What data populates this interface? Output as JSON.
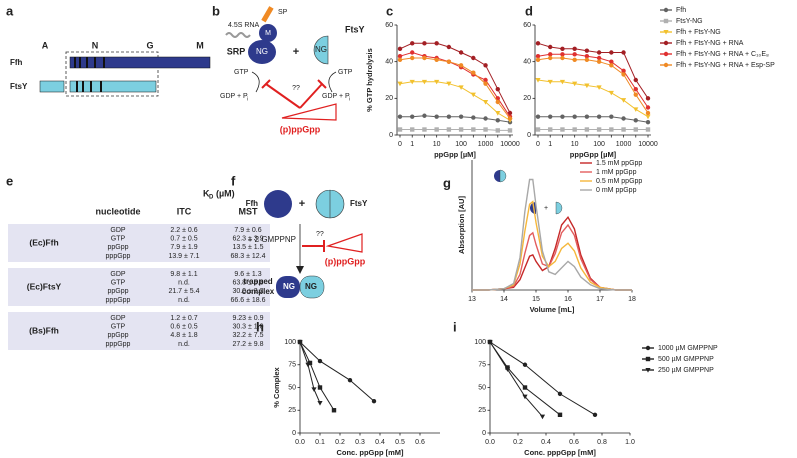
{
  "diagram_a": {
    "label": "a",
    "domains": [
      "A",
      "N",
      "G",
      "M"
    ],
    "proteins": [
      "Ffh",
      "FtsY"
    ]
  },
  "diagram_b": {
    "label": "b",
    "rna": "4.5S RNA",
    "sp": "SP",
    "m_domain": "M",
    "ffh_domain": "NG",
    "srp": "SRP",
    "plus": "+",
    "ftsy": "FtsY",
    "ftsy_domain": "NG",
    "gtp": [
      "GTP",
      "GTP"
    ],
    "gdp": [
      "GDP + P",
      "GDP + P"
    ],
    "pi": [
      "i",
      "i"
    ],
    "question": "??",
    "inhibitor": "(p)ppGpp"
  },
  "table_e": {
    "label": "e",
    "kd_symbol": "K",
    "kd_sub": "D",
    "kd_unit": "(µM)",
    "columns": [
      "nucleotide",
      "ITC",
      "MST"
    ],
    "groups": [
      {
        "name": "(Ec)Ffh",
        "rows": [
          [
            "GDP",
            "2.2 ± 0.6",
            "7.9 ± 0.6"
          ],
          [
            "GTP",
            "0.7 ± 0.5",
            "62.3 ± 3.9"
          ],
          [
            "ppGpp",
            "7.9 ± 1.9",
            "13.5 ± 1.5"
          ],
          [
            "pppGpp",
            "13.9 ± 7.1",
            "68.3 ± 12.4"
          ]
        ]
      },
      {
        "name": "(Ec)FtsY",
        "rows": [
          [
            "GDP",
            "9.8 ± 1.1",
            "9.6 ± 1.3"
          ],
          [
            "GTP",
            "n.d.",
            "63.8 ± 6.8"
          ],
          [
            "ppGpp",
            "21.7 ± 5.4",
            "30.0 ± 2.2"
          ],
          [
            "pppGpp",
            "n.d.",
            "66.6 ± 18.6"
          ]
        ]
      },
      {
        "name": "(Bs)Ffh",
        "rows": [
          [
            "GDP",
            "1.2 ± 0.7",
            "9.23 ± 0.9"
          ],
          [
            "GTP",
            "0.6 ± 0.5",
            "30.3 ± 1.0"
          ],
          [
            "ppGpp",
            "4.8 ± 1.8",
            "32.2 ± 7.5"
          ],
          [
            "pppGpp",
            "n.d.",
            "27.2 ± 9.8"
          ]
        ]
      }
    ]
  },
  "diagram_f": {
    "label": "f",
    "ffh": "Ffh",
    "plus": "+",
    "ftsy": "FtsY",
    "nucleotide": "+ 2 GMPPNP",
    "question": "??",
    "inhibitor": "(p)ppGpp",
    "product": [
      "trapped",
      "complex"
    ],
    "domains": [
      "NG",
      "NG"
    ]
  },
  "chart_data": [
    {
      "type": "line",
      "label": "c",
      "y_label": "% GTP hydrolysis",
      "x_label": "ppGpp [µM]",
      "categories": [
        "0",
        "1",
        null,
        "10",
        null,
        "100",
        null,
        "1000",
        null,
        "10000"
      ],
      "ylim": [
        0,
        60
      ],
      "yticks": [
        0,
        20,
        40,
        60
      ],
      "series": [
        {
          "color": "#636363",
          "marker": "circle",
          "values": [
            10,
            10,
            10.5,
            10,
            10,
            10,
            9.5,
            9,
            8,
            7
          ]
        },
        {
          "color": "#b0b0b0",
          "marker": "square",
          "values": [
            3,
            3,
            3,
            3,
            3,
            3,
            3,
            3,
            2.5,
            2.5
          ]
        },
        {
          "color": "#f2c12e",
          "marker": "triangle",
          "values": [
            28,
            29,
            29,
            29,
            28,
            26,
            22,
            18,
            12,
            8
          ]
        },
        {
          "color": "#a31f24",
          "marker": "circle",
          "values": [
            47,
            50,
            50,
            50,
            48,
            45,
            42,
            38,
            25,
            12
          ]
        },
        {
          "color": "#e03030",
          "marker": "circle",
          "values": [
            43,
            45,
            43,
            42,
            40,
            37,
            33,
            30,
            20,
            10
          ]
        },
        {
          "color": "#f08a24",
          "marker": "circle",
          "values": [
            41,
            42,
            42,
            41,
            40,
            38,
            34,
            28,
            18,
            9
          ]
        }
      ]
    },
    {
      "type": "line",
      "label": "d",
      "x_label": "pppGpp [µM]",
      "legend": "right",
      "categories": [
        "0",
        "1",
        null,
        "10",
        null,
        "100",
        null,
        "1000",
        null,
        "10000"
      ],
      "ylim": [
        0,
        60
      ],
      "yticks": [
        0,
        20,
        40,
        60
      ],
      "series": [
        {
          "name": "Ffh",
          "color": "#636363",
          "marker": "circle",
          "values": [
            10,
            10,
            10,
            10,
            10,
            10,
            10,
            9,
            8,
            7
          ]
        },
        {
          "name": "FtsY-NG",
          "color": "#b0b0b0",
          "marker": "square",
          "values": [
            3,
            3,
            3,
            3,
            3,
            3,
            3,
            3,
            3,
            3
          ]
        },
        {
          "name": "Ffh + FtsY-NG",
          "color": "#f2c12e",
          "marker": "triangle",
          "values": [
            30,
            29,
            29,
            28,
            27,
            26,
            23,
            19,
            14,
            10
          ]
        },
        {
          "name": "Ffh + FtsY-NG + RNA",
          "color": "#a31f24",
          "marker": "circle",
          "values": [
            50,
            48,
            47,
            47,
            46,
            45,
            45,
            45,
            30,
            20
          ]
        },
        {
          "name": "Ffh + FtsY-NG + RNA + C₁₀E₈",
          "color": "#e03030",
          "marker": "circle",
          "values": [
            43,
            44,
            44,
            44,
            43,
            42,
            40,
            35,
            25,
            15
          ]
        },
        {
          "name": "Ffh + FtsY-NG + RNA + Esp-SP",
          "color": "#f08a24",
          "marker": "circle",
          "values": [
            41,
            42,
            42,
            41,
            41,
            40,
            38,
            33,
            22,
            12
          ]
        }
      ]
    },
    {
      "type": "line",
      "label": "g",
      "y_label": "Absorption [AU]",
      "x_label": "Volume [mL]",
      "legend": "upper right",
      "x": [
        13,
        13.5,
        14,
        14.3,
        14.5,
        14.65,
        14.8,
        14.9,
        15,
        15.2,
        15.4,
        15.6,
        15.8,
        16,
        16.2,
        16.4,
        16.7,
        17,
        17.5,
        18
      ],
      "xlim": [
        13,
        18
      ],
      "xticks": [
        13,
        14,
        15,
        16,
        17,
        18
      ],
      "ylim": [
        0,
        1
      ],
      "series": [
        {
          "name": "1.5 mM ppGpp",
          "color": "#c62828",
          "values": [
            0,
            0,
            0.01,
            0.02,
            0.08,
            0.17,
            0.26,
            0.27,
            0.22,
            0.15,
            0.18,
            0.32,
            0.5,
            0.56,
            0.47,
            0.27,
            0.09,
            0.02,
            0,
            0
          ]
        },
        {
          "name": "1 mM ppGpp",
          "color": "#e35d5d",
          "values": [
            0,
            0,
            0.01,
            0.03,
            0.12,
            0.28,
            0.42,
            0.44,
            0.35,
            0.2,
            0.18,
            0.28,
            0.44,
            0.5,
            0.42,
            0.24,
            0.08,
            0.02,
            0,
            0
          ]
        },
        {
          "name": "0.5 mM ppGpp",
          "color": "#f5b73b",
          "values": [
            0,
            0,
            0.01,
            0.04,
            0.2,
            0.45,
            0.66,
            0.68,
            0.52,
            0.26,
            0.18,
            0.22,
            0.32,
            0.36,
            0.3,
            0.17,
            0.06,
            0.02,
            0,
            0
          ]
        },
        {
          "name": "0 mM ppGpp",
          "color": "#a8a8a8",
          "values": [
            0,
            0,
            0.01,
            0.05,
            0.25,
            0.6,
            0.85,
            0.85,
            0.65,
            0.3,
            0.14,
            0.12,
            0.17,
            0.22,
            0.18,
            0.1,
            0.04,
            0.01,
            0,
            0
          ]
        }
      ]
    },
    {
      "type": "line",
      "label": "h",
      "y_label": "% Complex",
      "x_label": "Conc. ppGpp [mM]",
      "xlim": [
        0,
        0.7
      ],
      "xticks": [
        {
          "value": 0,
          "label": "0.0"
        },
        0.1,
        0.2,
        0.3,
        0.4,
        0.5,
        0.6
      ],
      "ylim": [
        0,
        100
      ],
      "yticks": [
        0,
        25,
        50,
        75,
        100
      ],
      "series": [
        {
          "color": "#222222",
          "marker": "circle",
          "x": [
            0,
            0.1,
            0.25,
            0.37
          ],
          "values": [
            100,
            79,
            58,
            35
          ]
        },
        {
          "color": "#222222",
          "marker": "square",
          "x": [
            0,
            0.05,
            0.1,
            0.17
          ],
          "values": [
            100,
            77,
            50,
            25
          ]
        },
        {
          "color": "#222222",
          "marker": "triangle",
          "x": [
            0,
            0.04,
            0.07,
            0.1
          ],
          "values": [
            100,
            75,
            48,
            33
          ]
        }
      ]
    },
    {
      "type": "line",
      "label": "i",
      "x_label": "Conc. pppGpp [mM]",
      "legend": "right",
      "xlim": [
        0,
        1
      ],
      "xticks": [
        {
          "value": 0,
          "label": "0.0"
        },
        0.2,
        0.4,
        0.6,
        0.8,
        {
          "value": 1,
          "label": "1.0"
        }
      ],
      "ylim": [
        0,
        100
      ],
      "yticks": [
        0,
        25,
        50,
        75,
        100
      ],
      "series": [
        {
          "name": "1000 µM GMPPNP",
          "color": "#222222",
          "marker": "circle",
          "x": [
            0,
            0.25,
            0.5,
            0.75
          ],
          "values": [
            100,
            75,
            43,
            20
          ]
        },
        {
          "name": "500 µM GMPPNP",
          "color": "#222222",
          "marker": "square",
          "x": [
            0,
            0.125,
            0.25,
            0.5
          ],
          "values": [
            100,
            72,
            50,
            20
          ]
        },
        {
          "name": "250 µM GMPPNP",
          "color": "#222222",
          "marker": "triangle",
          "x": [
            0,
            0.125,
            0.25,
            0.375
          ],
          "values": [
            100,
            70,
            40,
            18
          ]
        }
      ]
    }
  ]
}
